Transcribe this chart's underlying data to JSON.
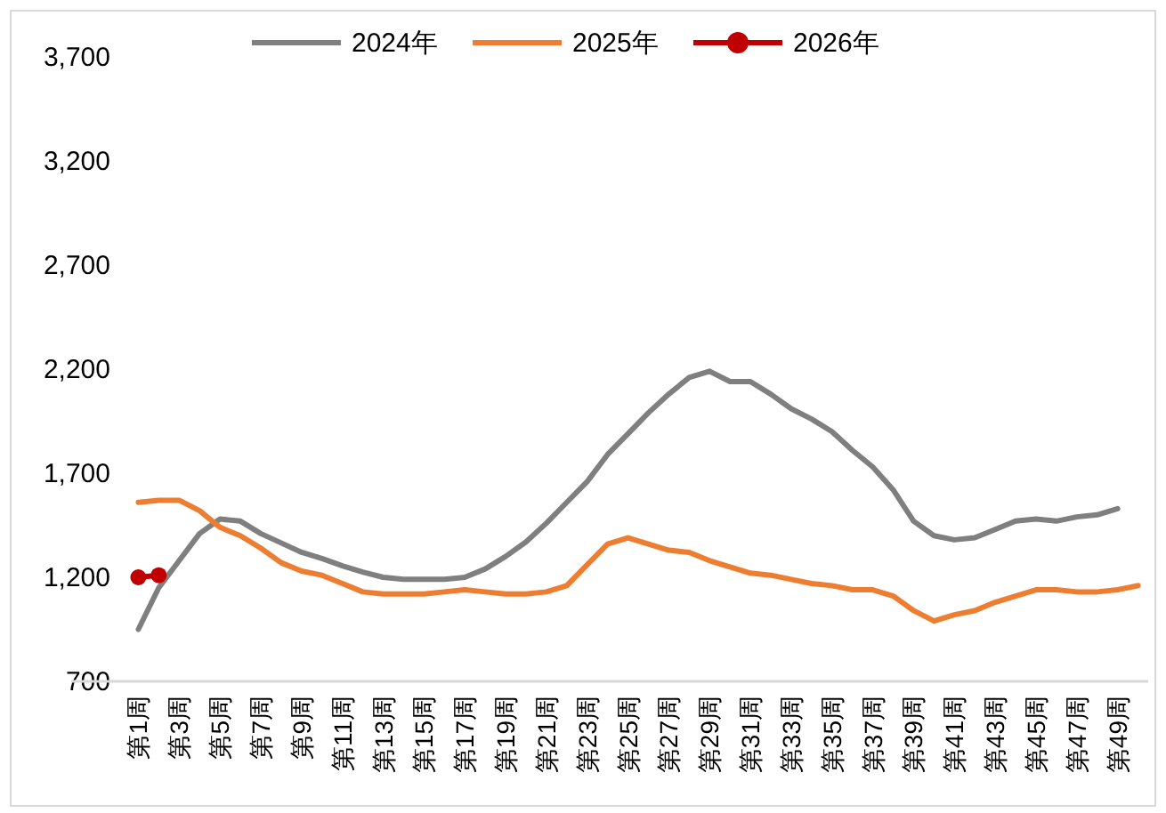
{
  "chart_data": {
    "type": "line",
    "categories": [
      "第1周",
      null,
      "第3周",
      null,
      "第5周",
      null,
      "第7周",
      null,
      "第9周",
      null,
      "第11周",
      null,
      "第13周",
      null,
      "第15周",
      null,
      "第17周",
      null,
      "第19周",
      null,
      "第21周",
      null,
      "第23周",
      null,
      "第25周",
      null,
      "第27周",
      null,
      "第29周",
      null,
      "第31周",
      null,
      "第33周",
      null,
      "第35周",
      null,
      "第37周",
      null,
      "第39周",
      null,
      "第41周",
      null,
      "第43周",
      null,
      "第45周",
      null,
      "第47周",
      null,
      "第49周",
      null
    ],
    "series": [
      {
        "name": "2024年",
        "color": "#7f7f7f",
        "marker": "none",
        "values": [
          950,
          1150,
          1280,
          1410,
          1480,
          1470,
          1410,
          1365,
          1320,
          1290,
          1255,
          1225,
          1200,
          1190,
          1190,
          1190,
          1200,
          1240,
          1300,
          1370,
          1460,
          1560,
          1660,
          1790,
          1890,
          1990,
          2080,
          2160,
          2190,
          2140,
          2140,
          2080,
          2010,
          1960,
          1900,
          1810,
          1730,
          1620,
          1470,
          1400,
          1380,
          1390,
          1430,
          1470,
          1480,
          1470,
          1490,
          1500,
          1530,
          null
        ]
      },
      {
        "name": "2025年",
        "color": "#ed7d31",
        "marker": "none",
        "values": [
          1560,
          1570,
          1570,
          1520,
          1440,
          1400,
          1340,
          1270,
          1230,
          1210,
          1170,
          1130,
          1120,
          1120,
          1120,
          1130,
          1140,
          1130,
          1120,
          1120,
          1130,
          1160,
          1260,
          1360,
          1390,
          1360,
          1330,
          1320,
          1280,
          1250,
          1220,
          1210,
          1190,
          1170,
          1160,
          1140,
          1140,
          1110,
          1040,
          990,
          1020,
          1040,
          1080,
          1110,
          1140,
          1140,
          1130,
          1130,
          1140,
          1160
        ]
      },
      {
        "name": "2026年",
        "color": "#c00000",
        "marker": "circle",
        "values": [
          1200,
          1210,
          null,
          null,
          null,
          null,
          null,
          null,
          null,
          null,
          null,
          null,
          null,
          null,
          null,
          null,
          null,
          null,
          null,
          null,
          null,
          null,
          null,
          null,
          null,
          null,
          null,
          null,
          null,
          null,
          null,
          null,
          null,
          null,
          null,
          null,
          null,
          null,
          null,
          null,
          null,
          null,
          null,
          null,
          null,
          null,
          null,
          null,
          null,
          null
        ]
      }
    ],
    "ylim": [
      700,
      3700
    ],
    "yticks": [
      {
        "value": 700,
        "label": "700"
      },
      {
        "value": 1200,
        "label": "1,200"
      },
      {
        "value": 1700,
        "label": "1,700"
      },
      {
        "value": 2200,
        "label": "2,200"
      },
      {
        "value": 2700,
        "label": "2,700"
      },
      {
        "value": 3200,
        "label": "3,200"
      },
      {
        "value": 3700,
        "label": "3,700"
      }
    ],
    "grid": false,
    "legend": "top"
  }
}
